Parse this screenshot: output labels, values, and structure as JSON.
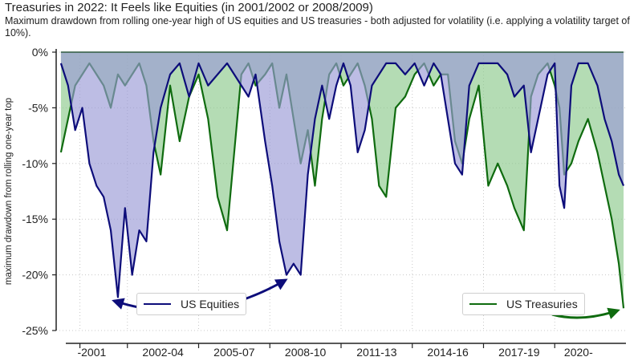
{
  "header": {
    "title": "Treasuries in 2022: It Feels like Equities (in 2001/2002 or 2008/2009)",
    "subtitle": "Maximum drawdown from rolling one-year high of US equities and US treasuries - both adjusted for volatility (i.e. applying a volatility target of 10%)."
  },
  "colors": {
    "equities_line": "#0d0d7a",
    "equities_fill": "#9999d6",
    "treasuries_line": "#0f6b0f",
    "treasuries_fill": "#8cc98c",
    "arrow_equities": "#0d0d7a",
    "arrow_treasuries": "#0f6b0f"
  },
  "chart_data": {
    "type": "area",
    "title": "Treasuries in 2022: It Feels like Equities (in 2001/2002 or 2008/2009)",
    "xlabel": "",
    "ylabel": "maximum drawdown from rolling one-year top",
    "ylim": [
      -25,
      0
    ],
    "xlim": [
      1999.0,
      2023.0
    ],
    "yticks": [
      0,
      -5,
      -10,
      -15,
      -20,
      -25
    ],
    "ytick_labels": [
      "0%",
      "-5%",
      "-10%",
      "-15%",
      "-20%",
      "-25%"
    ],
    "xtick_boundaries": [
      2000.0,
      2002.0,
      2005.0,
      2008.0,
      2011.0,
      2014.0,
      2017.0,
      2020.0
    ],
    "xtick_groups": [
      {
        "label": "-2001",
        "center": 2000.5
      },
      {
        "label": "2002-04",
        "center": 2003.5
      },
      {
        "label": "2005-07",
        "center": 2006.5
      },
      {
        "label": "2008-10",
        "center": 2009.5
      },
      {
        "label": "2011-13",
        "center": 2012.5
      },
      {
        "label": "2014-16",
        "center": 2015.5
      },
      {
        "label": "2017-19",
        "center": 2018.5
      },
      {
        "label": "2020-",
        "center": 2021.0
      }
    ],
    "grid": true,
    "series": [
      {
        "name": "US Equities",
        "x": [
          1999.2,
          1999.5,
          1999.8,
          2000.1,
          2000.4,
          2000.7,
          2001.0,
          2001.3,
          2001.6,
          2001.9,
          2002.2,
          2002.5,
          2002.8,
          2003.1,
          2003.4,
          2003.8,
          2004.2,
          2004.6,
          2005.0,
          2005.4,
          2005.8,
          2006.2,
          2006.5,
          2006.8,
          2007.1,
          2007.4,
          2007.8,
          2008.1,
          2008.4,
          2008.7,
          2009.0,
          2009.3,
          2009.6,
          2009.9,
          2010.2,
          2010.5,
          2010.8,
          2011.1,
          2011.4,
          2011.7,
          2012.0,
          2012.3,
          2012.6,
          2012.9,
          2013.3,
          2013.7,
          2014.1,
          2014.5,
          2014.9,
          2015.2,
          2015.5,
          2015.8,
          2016.1,
          2016.4,
          2016.8,
          2017.2,
          2017.6,
          2018.0,
          2018.3,
          2018.7,
          2019.0,
          2019.3,
          2019.7,
          2020.0,
          2020.2,
          2020.4,
          2020.7,
          2021.0,
          2021.4,
          2021.8,
          2022.1,
          2022.4,
          2022.7,
          2022.9
        ],
        "values": [
          -1,
          -3,
          -7,
          -5,
          -10,
          -12,
          -13,
          -16,
          -22,
          -14,
          -20,
          -16,
          -17,
          -9,
          -5,
          -2,
          -1,
          -4,
          -1,
          -3,
          -2,
          -1,
          -2,
          -3,
          -4,
          -2,
          -8,
          -12,
          -17,
          -20,
          -19,
          -20,
          -11,
          -6,
          -3,
          -6,
          -3,
          -1,
          -3,
          -9,
          -7,
          -3,
          -2,
          -1,
          -1,
          -2,
          -1,
          -3,
          -1,
          -2,
          -6,
          -10,
          -11,
          -3,
          -1,
          -1,
          -1,
          -2,
          -4,
          -3,
          -9,
          -6,
          -2,
          -1,
          -12,
          -14,
          -3,
          -1,
          -1,
          -3,
          -6,
          -8,
          -11,
          -12
        ]
      },
      {
        "name": "US Treasuries",
        "x": [
          1999.2,
          1999.5,
          1999.8,
          2000.1,
          2000.4,
          2000.7,
          2001.0,
          2001.3,
          2001.6,
          2001.9,
          2002.2,
          2002.5,
          2002.8,
          2003.1,
          2003.4,
          2003.8,
          2004.2,
          2004.6,
          2005.0,
          2005.4,
          2005.8,
          2006.2,
          2006.5,
          2006.8,
          2007.1,
          2007.4,
          2007.8,
          2008.1,
          2008.4,
          2008.7,
          2009.0,
          2009.3,
          2009.6,
          2009.9,
          2010.2,
          2010.5,
          2010.8,
          2011.1,
          2011.4,
          2011.7,
          2012.0,
          2012.3,
          2012.6,
          2012.9,
          2013.3,
          2013.7,
          2014.1,
          2014.5,
          2014.9,
          2015.2,
          2015.5,
          2015.8,
          2016.1,
          2016.4,
          2016.8,
          2017.2,
          2017.6,
          2018.0,
          2018.3,
          2018.7,
          2019.0,
          2019.3,
          2019.7,
          2020.0,
          2020.2,
          2020.4,
          2020.7,
          2021.0,
          2021.4,
          2021.8,
          2022.1,
          2022.4,
          2022.7,
          2022.9
        ],
        "values": [
          -9,
          -6,
          -3,
          -2,
          -1,
          -2,
          -3,
          -5,
          -2,
          -3,
          -2,
          -1,
          -3,
          -8,
          -11,
          -3,
          -8,
          -4,
          -2,
          -6,
          -13,
          -16,
          -9,
          -2,
          -1,
          -3,
          -2,
          -1,
          -5,
          -2,
          -6,
          -10,
          -7,
          -12,
          -6,
          -2,
          -1,
          -3,
          -2,
          -1,
          -3,
          -6,
          -12,
          -13,
          -5,
          -4,
          -2,
          -1,
          -3,
          -2,
          -2,
          -8,
          -10,
          -6,
          -3,
          -12,
          -10,
          -12,
          -14,
          -16,
          -4,
          -2,
          -1,
          -3,
          -5,
          -11,
          -10,
          -8,
          -6,
          -9,
          -12,
          -15,
          -19,
          -23
        ]
      }
    ],
    "legend": [
      {
        "name": "US Equities",
        "placement": "lower-left"
      },
      {
        "name": "US Treasuries",
        "placement": "lower-right"
      }
    ],
    "annotations": [
      {
        "type": "arrow",
        "from": "2001 equities trough",
        "to": "2009 equities trough"
      },
      {
        "type": "arrow",
        "from": "US Treasuries legend",
        "to": "2022 treasuries trough"
      }
    ]
  }
}
